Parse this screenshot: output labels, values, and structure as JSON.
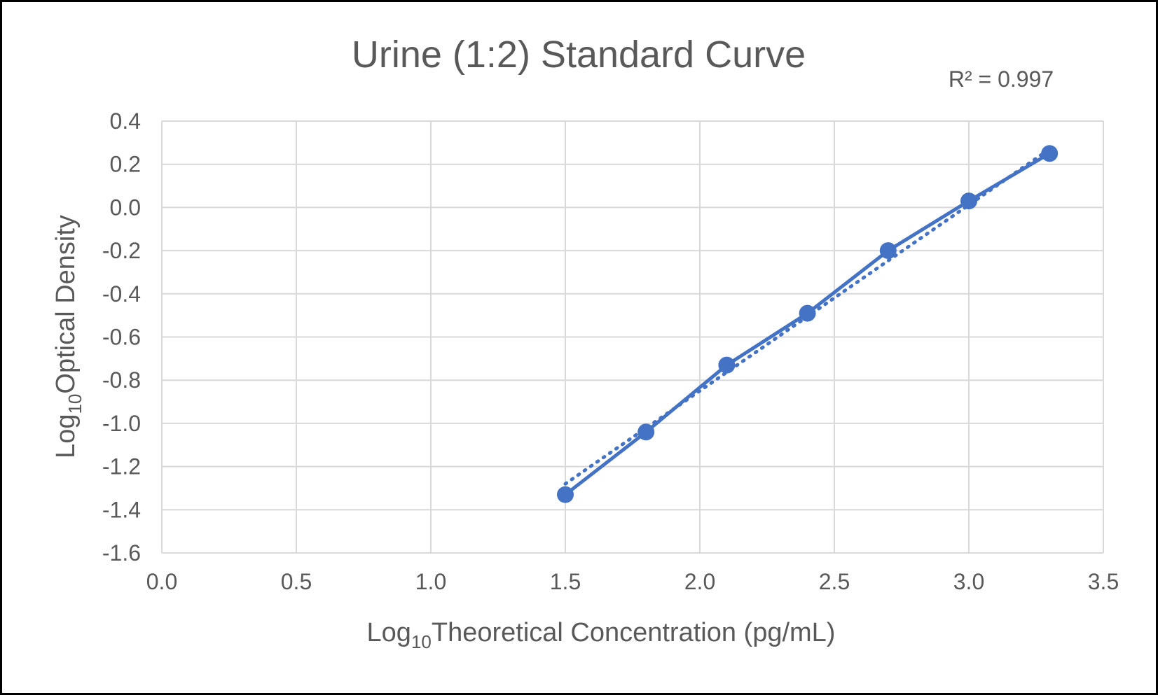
{
  "chart_data": {
    "type": "scatter",
    "title": "Urine (1:2) Standard Curve",
    "annotation": "R² = 0.997",
    "xlabel": {
      "prefix": "Log",
      "subscript": "10",
      "text": "Theoretical Concentration (pg/mL)"
    },
    "ylabel": {
      "prefix": "Log",
      "subscript": "10",
      "text": "Optical Density"
    },
    "xlim": [
      0,
      3.5
    ],
    "ylim": [
      -1.6,
      0.4
    ],
    "xticks": [
      "0.0",
      "0.5",
      "1.0",
      "1.5",
      "2.0",
      "2.5",
      "3.0",
      "3.5"
    ],
    "yticks": [
      "0.4",
      "0.2",
      "0.0",
      "-0.2",
      "-0.4",
      "-0.6",
      "-0.8",
      "-1.0",
      "-1.2",
      "-1.4",
      "-1.6"
    ],
    "grid": true,
    "series": [
      {
        "x": [
          1.5,
          1.8,
          2.1,
          2.4,
          2.7,
          3.0,
          3.3
        ],
        "y": [
          -1.33,
          -1.04,
          -0.73,
          -0.49,
          -0.2,
          0.03,
          0.25
        ],
        "color": "#4472C4",
        "style": "line-with-markers"
      }
    ],
    "trendline": {
      "type": "linear",
      "style": "dotted",
      "color": "#4472C4",
      "x": [
        1.5,
        3.3
      ],
      "y": [
        -1.28,
        0.27
      ]
    }
  }
}
